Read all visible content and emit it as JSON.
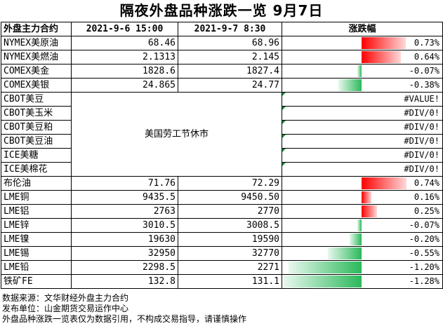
{
  "title": "隔夜外盘品种涨跌一览 9月7日",
  "header": {
    "name": "外盘主力合约",
    "date1": "2021-9-6 15:00",
    "date2": "2021-9-7 8:30",
    "change": "涨跌幅"
  },
  "holiday_note": "美国劳工节休市",
  "rows": [
    {
      "name": "NYMEX美原油",
      "v1": "68.46",
      "v2": "68.96",
      "change": "0.73%",
      "pct": 0.73
    },
    {
      "name": "NYMEX美燃油",
      "v1": "2.1313",
      "v2": "2.145",
      "change": "0.64%",
      "pct": 0.64
    },
    {
      "name": "COMEX美金",
      "v1": "1828.6",
      "v2": "1827.4",
      "change": "-0.07%",
      "pct": -0.07
    },
    {
      "name": "COMEX美银",
      "v1": "24.865",
      "v2": "24.77",
      "change": "-0.38%",
      "pct": -0.38
    },
    {
      "name": "CBOT美豆",
      "v1": "",
      "v2": "",
      "change": "#VALUE!",
      "pct": null
    },
    {
      "name": "CBOT美玉米",
      "v1": "",
      "v2": "",
      "change": "#DIV/0!",
      "pct": null
    },
    {
      "name": "CBOT美豆粕",
      "v1": "",
      "v2": "",
      "change": "#DIV/0!",
      "pct": null
    },
    {
      "name": "CBOT美豆油",
      "v1": "",
      "v2": "",
      "change": "#DIV/0!",
      "pct": null
    },
    {
      "name": "ICE美糖",
      "v1": "",
      "v2": "",
      "change": "#DIV/0!",
      "pct": null
    },
    {
      "name": "ICE美棉花",
      "v1": "",
      "v2": "",
      "change": "#DIV/0!",
      "pct": null
    },
    {
      "name": "布伦油",
      "v1": "71.76",
      "v2": "72.29",
      "change": "0.74%",
      "pct": 0.74
    },
    {
      "name": "LME铜",
      "v1": "9435.5",
      "v2": "9450.50",
      "change": "0.16%",
      "pct": 0.16
    },
    {
      "name": "LME铝",
      "v1": "2763",
      "v2": "2770",
      "change": "0.25%",
      "pct": 0.25
    },
    {
      "name": "LME锌",
      "v1": "3010.5",
      "v2": "3008.5",
      "change": "-0.07%",
      "pct": -0.07
    },
    {
      "name": "LME镍",
      "v1": "19630",
      "v2": "19590",
      "change": "-0.20%",
      "pct": -0.2
    },
    {
      "name": "LME锡",
      "v1": "32950",
      "v2": "32770",
      "change": "-0.55%",
      "pct": -0.55
    },
    {
      "name": "LME铅",
      "v1": "2298.5",
      "v2": "2271",
      "change": "-1.20%",
      "pct": -1.2
    },
    {
      "name": "铁矿FE",
      "v1": "132.8",
      "v2": "131.1",
      "change": "-1.28%",
      "pct": -1.28
    }
  ],
  "footer": [
    "数据来源：文华财经外盘主力合约",
    "发布单位：山金期货交易运作中心",
    "外盘品种涨跌一览表仅为数据引用，不构成交易指导，请谨慎操作"
  ],
  "colors": {
    "up": "#ff0000",
    "down": "#2bb95a"
  }
}
